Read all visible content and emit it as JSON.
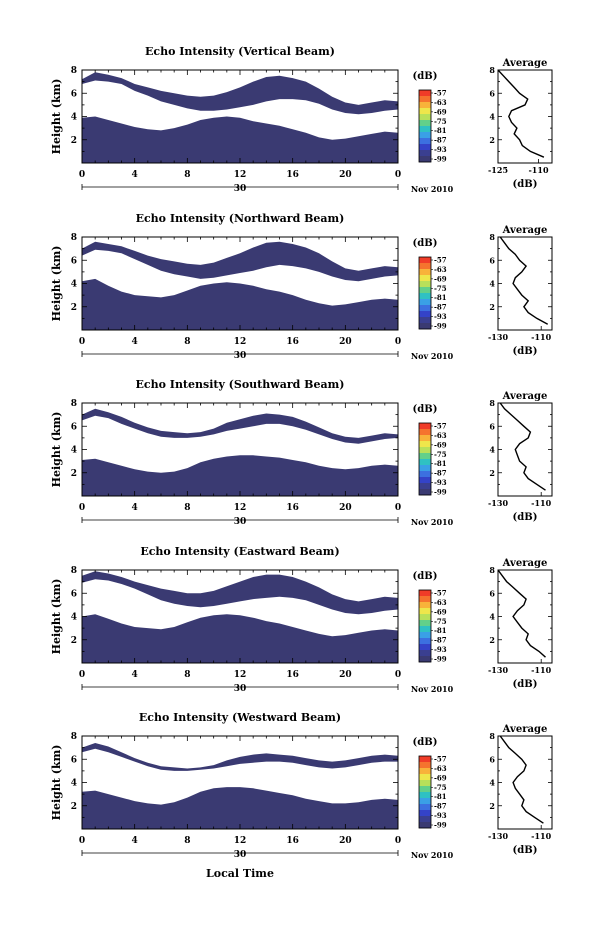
{
  "figure": {
    "xlabel": "Local Time",
    "date_label": "Nov 2010",
    "date_tick": "30",
    "colorbar_unit": "(dB)",
    "colorbar_ticks": [
      "-57",
      "-63",
      "-69",
      "-75",
      "-81",
      "-87",
      "-93",
      "-99"
    ],
    "colorbar_colors": [
      "#f03c28",
      "#f5732e",
      "#f8b23a",
      "#eee64b",
      "#b8e05a",
      "#62d08a",
      "#2fc1c3",
      "#3aa0e6",
      "#3c70e0",
      "#3443c8",
      "#3a3f90",
      "#3a3a72"
    ],
    "fill_color": "#3a3a72",
    "average_title": "Average",
    "average_xlabel": "(dB)"
  },
  "chart_data": [
    {
      "type": "heatmap",
      "title": "Echo Intensity (Vertical Beam)",
      "ylabel": "Height (km)",
      "xlim": [
        0,
        24
      ],
      "ylim": [
        0,
        8
      ],
      "xticks": [
        "0",
        "4",
        "8",
        "12",
        "16",
        "20",
        "0"
      ],
      "yticks": [
        "2",
        "4",
        "6",
        "8"
      ],
      "bands": [
        {
          "upper": [
            3.9,
            4.0,
            3.7,
            3.4,
            3.1,
            2.9,
            2.8,
            3.0,
            3.3,
            3.7,
            3.9,
            4.0,
            3.9,
            3.6,
            3.4,
            3.2,
            2.9,
            2.6,
            2.2,
            2.0,
            2.1,
            2.3,
            2.5,
            2.7,
            2.6
          ],
          "lower": [
            0,
            0,
            0,
            0,
            0,
            0,
            0,
            0,
            0,
            0,
            0,
            0,
            0,
            0,
            0,
            0,
            0,
            0,
            0,
            0,
            0,
            0,
            0,
            0,
            0
          ]
        },
        {
          "upper": [
            7.2,
            7.8,
            7.6,
            7.3,
            6.8,
            6.5,
            6.2,
            6.0,
            5.8,
            5.7,
            5.8,
            6.1,
            6.5,
            7.0,
            7.4,
            7.5,
            7.3,
            7.0,
            6.4,
            5.7,
            5.2,
            5.0,
            5.2,
            5.4,
            5.3
          ],
          "lower": [
            6.8,
            7.1,
            7.0,
            6.8,
            6.2,
            5.8,
            5.3,
            5.0,
            4.7,
            4.5,
            4.5,
            4.6,
            4.8,
            5.0,
            5.3,
            5.5,
            5.5,
            5.4,
            5.1,
            4.6,
            4.3,
            4.2,
            4.3,
            4.5,
            4.6
          ]
        }
      ],
      "average": {
        "xlim": [
          -125,
          -105
        ],
        "xticks": [
          "-125",
          "-110"
        ],
        "yticks": [
          "2",
          "4",
          "6",
          "8"
        ],
        "heights": [
          0.5,
          1.0,
          1.5,
          2.0,
          2.5,
          3.0,
          3.5,
          4.0,
          4.5,
          5.0,
          5.5,
          6.0,
          6.5,
          7.0,
          7.5,
          8.0
        ],
        "values": [
          -108,
          -113,
          -116,
          -117,
          -119,
          -118,
          -120,
          -121,
          -120,
          -115,
          -114,
          -117,
          -119,
          -121,
          -123,
          -125
        ]
      }
    },
    {
      "type": "heatmap",
      "title": "Echo Intensity (Northward Beam)",
      "ylabel": "Height (km)",
      "xlim": [
        0,
        24
      ],
      "ylim": [
        0,
        8
      ],
      "xticks": [
        "0",
        "4",
        "8",
        "12",
        "16",
        "20",
        "0"
      ],
      "yticks": [
        "2",
        "4",
        "6",
        "8"
      ],
      "bands": [
        {
          "upper": [
            4.2,
            4.4,
            3.8,
            3.3,
            3.0,
            2.9,
            2.8,
            3.0,
            3.4,
            3.8,
            4.0,
            4.1,
            4.0,
            3.8,
            3.5,
            3.3,
            3.0,
            2.6,
            2.3,
            2.1,
            2.2,
            2.4,
            2.6,
            2.7,
            2.6
          ],
          "lower": [
            0,
            0,
            0,
            0,
            0,
            0,
            0,
            0,
            0,
            0,
            0,
            0,
            0,
            0,
            0,
            0,
            0,
            0,
            0,
            0,
            0,
            0,
            0,
            0,
            0
          ]
        },
        {
          "upper": [
            7.0,
            7.6,
            7.4,
            7.2,
            6.8,
            6.4,
            6.1,
            5.9,
            5.7,
            5.6,
            5.8,
            6.2,
            6.6,
            7.1,
            7.5,
            7.6,
            7.4,
            7.1,
            6.6,
            5.9,
            5.3,
            5.1,
            5.3,
            5.5,
            5.4
          ],
          "lower": [
            6.4,
            6.9,
            6.8,
            6.6,
            6.1,
            5.6,
            5.1,
            4.8,
            4.6,
            4.4,
            4.5,
            4.7,
            4.9,
            5.1,
            5.4,
            5.6,
            5.5,
            5.3,
            5.0,
            4.6,
            4.3,
            4.2,
            4.4,
            4.6,
            4.7
          ]
        }
      ],
      "average": {
        "xlim": [
          -130,
          -105
        ],
        "xticks": [
          "-130",
          "-110"
        ],
        "yticks": [
          "2",
          "4",
          "6",
          "8"
        ],
        "heights": [
          0.5,
          1.0,
          1.5,
          2.0,
          2.5,
          3.0,
          3.5,
          4.0,
          4.5,
          5.0,
          5.5,
          6.0,
          6.5,
          7.0,
          7.5,
          8.0
        ],
        "values": [
          -107,
          -112,
          -116,
          -118,
          -116,
          -119,
          -121,
          -123,
          -122,
          -119,
          -117,
          -120,
          -122,
          -125,
          -127,
          -129
        ]
      }
    },
    {
      "type": "heatmap",
      "title": "Echo Intensity (Southward Beam)",
      "ylabel": "Height (km)",
      "xlim": [
        0,
        24
      ],
      "ylim": [
        0,
        8
      ],
      "xticks": [
        "0",
        "4",
        "8",
        "12",
        "16",
        "20",
        "0"
      ],
      "yticks": [
        "2",
        "4",
        "6",
        "8"
      ],
      "bands": [
        {
          "upper": [
            3.1,
            3.2,
            2.9,
            2.6,
            2.3,
            2.1,
            2.0,
            2.1,
            2.4,
            2.9,
            3.2,
            3.4,
            3.5,
            3.5,
            3.4,
            3.3,
            3.1,
            2.9,
            2.6,
            2.4,
            2.3,
            2.4,
            2.6,
            2.7,
            2.6
          ],
          "lower": [
            0,
            0,
            0,
            0,
            0,
            0,
            0,
            0,
            0,
            0,
            0,
            0,
            0,
            0,
            0,
            0,
            0,
            0,
            0,
            0,
            0,
            0,
            0,
            0,
            0
          ]
        },
        {
          "upper": [
            7.0,
            7.5,
            7.2,
            6.8,
            6.3,
            5.9,
            5.6,
            5.5,
            5.4,
            5.5,
            5.8,
            6.3,
            6.6,
            6.9,
            7.1,
            7.0,
            6.8,
            6.4,
            5.9,
            5.4,
            5.1,
            5.0,
            5.2,
            5.4,
            5.3
          ],
          "lower": [
            6.5,
            6.9,
            6.7,
            6.2,
            5.8,
            5.4,
            5.1,
            5.0,
            5.0,
            5.1,
            5.3,
            5.6,
            5.8,
            6.0,
            6.2,
            6.2,
            6.0,
            5.7,
            5.3,
            4.9,
            4.6,
            4.5,
            4.7,
            4.9,
            5.0
          ]
        }
      ],
      "average": {
        "xlim": [
          -130,
          -105
        ],
        "xticks": [
          "-130",
          "-110"
        ],
        "yticks": [
          "2",
          "4",
          "6",
          "8"
        ],
        "heights": [
          0.5,
          1.0,
          1.5,
          2.0,
          2.5,
          3.0,
          3.5,
          4.0,
          4.5,
          5.0,
          5.5,
          6.0,
          6.5,
          7.0,
          7.5,
          8.0
        ],
        "values": [
          -108,
          -112,
          -116,
          -118,
          -117,
          -120,
          -121,
          -122,
          -120,
          -116,
          -115,
          -118,
          -121,
          -124,
          -127,
          -129
        ]
      }
    },
    {
      "type": "heatmap",
      "title": "Echo Intensity (Eastward Beam)",
      "ylabel": "Height (km)",
      "xlim": [
        0,
        24
      ],
      "ylim": [
        0,
        8
      ],
      "xticks": [
        "0",
        "4",
        "8",
        "12",
        "16",
        "20",
        "0"
      ],
      "yticks": [
        "2",
        "4",
        "6",
        "8"
      ],
      "bands": [
        {
          "upper": [
            4.0,
            4.2,
            3.8,
            3.4,
            3.1,
            3.0,
            2.9,
            3.1,
            3.5,
            3.9,
            4.1,
            4.2,
            4.1,
            3.9,
            3.6,
            3.4,
            3.1,
            2.8,
            2.5,
            2.3,
            2.4,
            2.6,
            2.8,
            2.9,
            2.8
          ],
          "lower": [
            0,
            0,
            0,
            0,
            0,
            0,
            0,
            0,
            0,
            0,
            0,
            0,
            0,
            0,
            0,
            0,
            0,
            0,
            0,
            0,
            0,
            0,
            0,
            0,
            0
          ]
        },
        {
          "upper": [
            7.5,
            7.9,
            7.7,
            7.4,
            7.0,
            6.7,
            6.4,
            6.2,
            6.0,
            6.0,
            6.2,
            6.6,
            7.0,
            7.4,
            7.6,
            7.6,
            7.4,
            7.0,
            6.5,
            5.9,
            5.5,
            5.3,
            5.5,
            5.7,
            5.6
          ],
          "lower": [
            6.9,
            7.2,
            7.1,
            6.8,
            6.4,
            5.9,
            5.4,
            5.1,
            4.9,
            4.8,
            4.9,
            5.1,
            5.3,
            5.5,
            5.6,
            5.7,
            5.6,
            5.4,
            5.0,
            4.6,
            4.3,
            4.2,
            4.3,
            4.5,
            4.6
          ]
        }
      ],
      "average": {
        "xlim": [
          -130,
          -105
        ],
        "xticks": [
          "-130",
          "-110"
        ],
        "yticks": [
          "2",
          "4",
          "6",
          "8"
        ],
        "heights": [
          0.5,
          1.0,
          1.5,
          2.0,
          2.5,
          3.0,
          3.5,
          4.0,
          4.5,
          5.0,
          5.5,
          6.0,
          6.5,
          7.0,
          7.5,
          8.0
        ],
        "values": [
          -108,
          -111,
          -115,
          -117,
          -116,
          -119,
          -121,
          -123,
          -121,
          -118,
          -117,
          -120,
          -123,
          -126,
          -128,
          -130
        ]
      }
    },
    {
      "type": "heatmap",
      "title": "Echo Intensity (Westward Beam)",
      "ylabel": "Height (km)",
      "xlim": [
        0,
        24
      ],
      "ylim": [
        0,
        8
      ],
      "xticks": [
        "0",
        "4",
        "8",
        "12",
        "16",
        "20",
        "0"
      ],
      "yticks": [
        "2",
        "4",
        "6",
        "8"
      ],
      "bands": [
        {
          "upper": [
            3.2,
            3.3,
            3.0,
            2.7,
            2.4,
            2.2,
            2.1,
            2.3,
            2.7,
            3.2,
            3.5,
            3.6,
            3.6,
            3.5,
            3.3,
            3.1,
            2.9,
            2.6,
            2.4,
            2.2,
            2.2,
            2.3,
            2.5,
            2.6,
            2.5
          ],
          "lower": [
            0,
            0,
            0,
            0,
            0,
            0,
            0,
            0,
            0,
            0,
            0,
            0,
            0,
            0,
            0,
            0,
            0,
            0,
            0,
            0,
            0,
            0,
            0,
            0,
            0
          ]
        },
        {
          "upper": [
            7.0,
            7.4,
            7.1,
            6.6,
            6.1,
            5.7,
            5.4,
            5.3,
            5.2,
            5.3,
            5.5,
            5.9,
            6.2,
            6.4,
            6.5,
            6.4,
            6.3,
            6.1,
            5.9,
            5.8,
            5.9,
            6.1,
            6.3,
            6.4,
            6.3
          ],
          "lower": [
            6.6,
            6.9,
            6.6,
            6.2,
            5.8,
            5.4,
            5.1,
            5.0,
            5.0,
            5.1,
            5.2,
            5.4,
            5.6,
            5.7,
            5.8,
            5.8,
            5.7,
            5.5,
            5.3,
            5.2,
            5.3,
            5.5,
            5.7,
            5.8,
            5.8
          ]
        }
      ],
      "average": {
        "xlim": [
          -130,
          -105
        ],
        "xticks": [
          "-130",
          "-110"
        ],
        "yticks": [
          "2",
          "4",
          "6",
          "8"
        ],
        "heights": [
          0.5,
          1.0,
          1.5,
          2.0,
          2.5,
          3.0,
          3.5,
          4.0,
          4.5,
          5.0,
          5.5,
          6.0,
          6.5,
          7.0,
          7.5,
          8.0
        ],
        "values": [
          -109,
          -113,
          -117,
          -119,
          -118,
          -120,
          -122,
          -123,
          -121,
          -118,
          -117,
          -119,
          -122,
          -125,
          -127,
          -129
        ]
      }
    }
  ]
}
